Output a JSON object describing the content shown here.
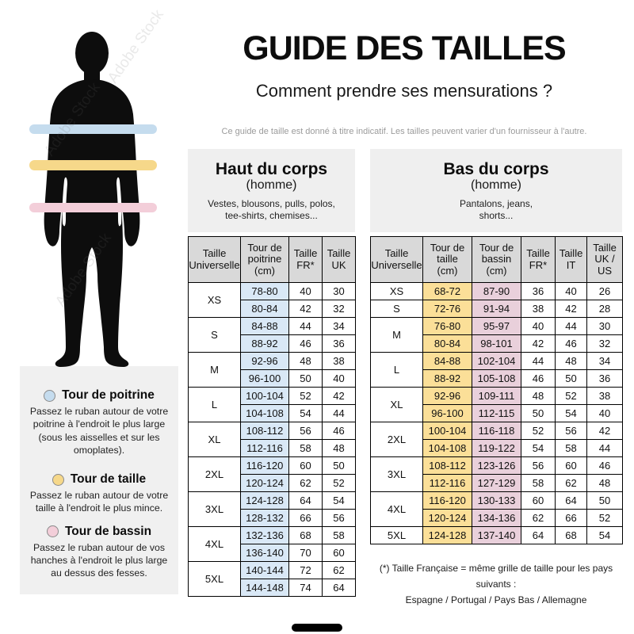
{
  "page": {
    "title": "GUIDE DES TAILLES",
    "subtitle": "Comment prendre ses mensurations ?",
    "disclaimer": "Ce guide de taille est donné à titre indicatif. Les tailles peuvent varier d'un fournisseur à l'autre.",
    "watermark": "Adobe Stock"
  },
  "colors": {
    "band_chest": "#c5dcee",
    "band_waist": "#f6d88a",
    "band_hip": "#f3ced9",
    "cell_chest": "#d9e8f6",
    "cell_waist": "#fbdf98",
    "cell_hip": "#e9d0db",
    "header_gray": "#d9d9d9",
    "panel_gray": "#efefef"
  },
  "legend": {
    "items": [
      {
        "label": "Tour de poitrine",
        "color": "band_chest",
        "description": "Passez le ruban autour de votre\npoitrine à l'endroit le plus large\n(sous les aisselles et sur les\nomoplates)."
      },
      {
        "label": "Tour de taille",
        "color": "band_waist",
        "description": "Passez le ruban autour de votre\ntaille à l'endroit le plus mince."
      },
      {
        "label": "Tour de bassin",
        "color": "band_hip",
        "description": "Passez le ruban autour de vos\nhanches à l'endroit le plus large\nau dessus des fesses."
      }
    ]
  },
  "upper_section": {
    "title": "Haut du corps",
    "subtitle": "(homme)",
    "items": "Vestes, blousons, pulls, polos,\ntee-shirts, chemises...",
    "table": {
      "headers": [
        "Taille\nUniverselle",
        "Tour de\npoitrine\n(cm)",
        "Taille\nFR*",
        "Taille\nUK"
      ],
      "highlight_cols": {
        "0": "cell_chest"
      },
      "groups": [
        {
          "size": "XS",
          "rows": [
            [
              "78-80",
              "40",
              "30"
            ],
            [
              "80-84",
              "42",
              "32"
            ]
          ]
        },
        {
          "size": "S",
          "rows": [
            [
              "84-88",
              "44",
              "34"
            ],
            [
              "88-92",
              "46",
              "36"
            ]
          ]
        },
        {
          "size": "M",
          "rows": [
            [
              "92-96",
              "48",
              "38"
            ],
            [
              "96-100",
              "50",
              "40"
            ]
          ]
        },
        {
          "size": "L",
          "rows": [
            [
              "100-104",
              "52",
              "42"
            ],
            [
              "104-108",
              "54",
              "44"
            ]
          ]
        },
        {
          "size": "XL",
          "rows": [
            [
              "108-112",
              "56",
              "46"
            ],
            [
              "112-116",
              "58",
              "48"
            ]
          ]
        },
        {
          "size": "2XL",
          "rows": [
            [
              "116-120",
              "60",
              "50"
            ],
            [
              "120-124",
              "62",
              "52"
            ]
          ]
        },
        {
          "size": "3XL",
          "rows": [
            [
              "124-128",
              "64",
              "54"
            ],
            [
              "128-132",
              "66",
              "56"
            ]
          ]
        },
        {
          "size": "4XL",
          "rows": [
            [
              "132-136",
              "68",
              "58"
            ],
            [
              "136-140",
              "70",
              "60"
            ]
          ]
        },
        {
          "size": "5XL",
          "rows": [
            [
              "140-144",
              "72",
              "62"
            ],
            [
              "144-148",
              "74",
              "64"
            ]
          ]
        }
      ]
    }
  },
  "lower_section": {
    "title": "Bas du corps",
    "subtitle": "(homme)",
    "items": "Pantalons, jeans,\nshorts...",
    "table": {
      "headers": [
        "Taille\nUniverselle",
        "Tour de\ntaille\n(cm)",
        "Tour de\nbassin\n(cm)",
        "Taille\nFR*",
        "Taille\nIT",
        "Taille\nUK /\nUS"
      ],
      "highlight_cols": {
        "0": "cell_waist",
        "1": "cell_hip"
      },
      "groups": [
        {
          "size": "XS",
          "rows": [
            [
              "68-72",
              "87-90",
              "36",
              "40",
              "26"
            ]
          ]
        },
        {
          "size": "S",
          "rows": [
            [
              "72-76",
              "91-94",
              "38",
              "42",
              "28"
            ]
          ]
        },
        {
          "size": "M",
          "rows": [
            [
              "76-80",
              "95-97",
              "40",
              "44",
              "30"
            ],
            [
              "80-84",
              "98-101",
              "42",
              "46",
              "32"
            ]
          ]
        },
        {
          "size": "L",
          "rows": [
            [
              "84-88",
              "102-104",
              "44",
              "48",
              "34"
            ],
            [
              "88-92",
              "105-108",
              "46",
              "50",
              "36"
            ]
          ]
        },
        {
          "size": "XL",
          "rows": [
            [
              "92-96",
              "109-111",
              "48",
              "52",
              "38"
            ],
            [
              "96-100",
              "112-115",
              "50",
              "54",
              "40"
            ]
          ]
        },
        {
          "size": "2XL",
          "rows": [
            [
              "100-104",
              "116-118",
              "52",
              "56",
              "42"
            ],
            [
              "104-108",
              "119-122",
              "54",
              "58",
              "44"
            ]
          ]
        },
        {
          "size": "3XL",
          "rows": [
            [
              "108-112",
              "123-126",
              "56",
              "60",
              "46"
            ],
            [
              "112-116",
              "127-129",
              "58",
              "62",
              "48"
            ]
          ]
        },
        {
          "size": "4XL",
          "rows": [
            [
              "116-120",
              "130-133",
              "60",
              "64",
              "50"
            ],
            [
              "120-124",
              "134-136",
              "62",
              "66",
              "52"
            ]
          ]
        },
        {
          "size": "5XL",
          "rows": [
            [
              "124-128",
              "137-140",
              "64",
              "68",
              "54"
            ]
          ]
        }
      ]
    }
  },
  "footnote": "(*) Taille Française = même grille de taille pour les pays suivants :\nEspagne / Portugal / Pays Bas / Allemagne"
}
